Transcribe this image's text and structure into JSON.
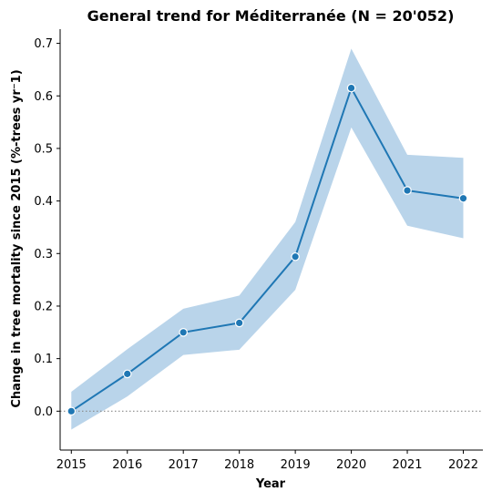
{
  "chart_data": {
    "type": "line",
    "title": "General trend for Méditerranée  (N = 20'052)",
    "xlabel": "Year",
    "ylabel": "Change in tree mortality since 2015 (%-trees yr⁻1)",
    "x": [
      2015,
      2016,
      2017,
      2018,
      2019,
      2020,
      2021,
      2022
    ],
    "x_tick_labels": [
      "2015",
      "2016",
      "2017",
      "2018",
      "2019",
      "2020",
      "2021",
      "2022"
    ],
    "y_ticks": [
      0.0,
      0.1,
      0.2,
      0.3,
      0.4,
      0.5,
      0.6,
      0.7
    ],
    "y_tick_labels": [
      "0.0",
      "0.1",
      "0.2",
      "0.3",
      "0.4",
      "0.5",
      "0.6",
      "0.7"
    ],
    "ylim": [
      -0.074,
      0.727
    ],
    "xlim": [
      2014.8,
      2022.35
    ],
    "series": [
      {
        "values": [
          0.0,
          0.071,
          0.15,
          0.168,
          0.294,
          0.615,
          0.42,
          0.405
        ],
        "ci_lower": [
          -0.035,
          0.028,
          0.107,
          0.117,
          0.231,
          0.54,
          0.353,
          0.329
        ],
        "ci_upper": [
          0.037,
          0.118,
          0.195,
          0.22,
          0.36,
          0.69,
          0.488,
          0.482
        ],
        "color": "#1f77b4",
        "band_color": "#b9d4ea"
      }
    ],
    "reference_line": {
      "y": 0.0,
      "style": "dotted",
      "color": "#888888"
    },
    "grid": false,
    "legend": "none"
  }
}
